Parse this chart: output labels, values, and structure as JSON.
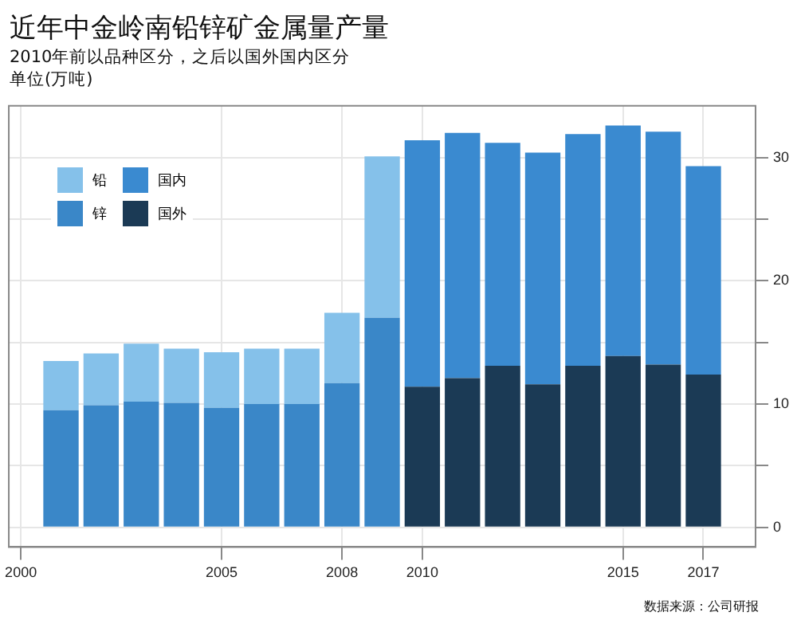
{
  "chart_data": {
    "type": "bar",
    "title": "近年中金岭南铅锌矿金属量产量",
    "subtitle": "2010年前以品种区分，之后以国外国内区分",
    "ylabel": "单位(万吨)",
    "x": [
      2001,
      2002,
      2003,
      2004,
      2005,
      2006,
      2007,
      2008,
      2009,
      2010,
      2011,
      2012,
      2013,
      2014,
      2015,
      2016,
      2017
    ],
    "series": [
      {
        "name": "锌",
        "color": "#3a87c8",
        "values": [
          9.5,
          9.9,
          10.2,
          10.1,
          9.7,
          10.0,
          10.0,
          11.7,
          17,
          null,
          null,
          null,
          null,
          null,
          null,
          null,
          null
        ]
      },
      {
        "name": "铅",
        "color": "#85c1ea",
        "values": [
          4.0,
          4.2,
          4.7,
          4.4,
          4.5,
          4.5,
          4.5,
          5.7,
          13.1,
          null,
          null,
          null,
          null,
          null,
          null,
          null,
          null
        ]
      },
      {
        "name": "国外",
        "color": "#1b3a55",
        "values": [
          null,
          null,
          null,
          null,
          null,
          null,
          null,
          null,
          null,
          11.4,
          12.1,
          13.1,
          11.6,
          13.1,
          13.9,
          13.2,
          12.4
        ]
      },
      {
        "name": "国内",
        "color": "#3a8ad0",
        "values": [
          null,
          null,
          null,
          null,
          null,
          null,
          null,
          null,
          null,
          20.0,
          19.9,
          18.1,
          18.8,
          18.8,
          18.7,
          18.9,
          16.9
        ]
      }
    ],
    "stacked": true,
    "xlim": [
      1999.7,
      2018.3
    ],
    "xticks": [
      2000,
      2005,
      2008,
      2010,
      2015,
      2017
    ],
    "ylim": [
      -1.6,
      34.2
    ],
    "yticks": [
      0,
      {
        "value": 5,
        "label": null
      },
      10,
      {
        "value": 15,
        "label": null
      },
      20,
      {
        "value": 25,
        "label": null
      },
      30
    ],
    "grid": true,
    "legend": "top left",
    "annotations": [
      "数据来源：公司研报"
    ]
  }
}
